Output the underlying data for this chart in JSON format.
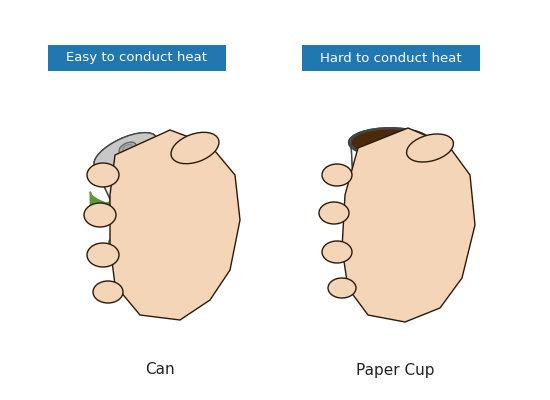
{
  "background_color": "#ffffff",
  "left_label": "Easy to conduct heat",
  "right_label": "Hard to conduct heat",
  "left_caption": "Can",
  "right_caption": "Paper Cup",
  "label_bg_color": "#2177b0",
  "label_text_color": "#ffffff",
  "label_fontsize": 9.5,
  "caption_fontsize": 11,
  "skin_color": "#f5d5b8",
  "skin_outline": "#2a1a0a",
  "can_body_color": "#eeeeee",
  "can_outline": "#444444",
  "cup_body_color": "#f8f8f8",
  "heat_red": "#e06050",
  "heat_pink": "#f0a090",
  "leaf_color": "#5a9a3a",
  "coffee_color": "#4a2a0a",
  "fig_w": 5.5,
  "fig_h": 4.0,
  "dpi": 100
}
